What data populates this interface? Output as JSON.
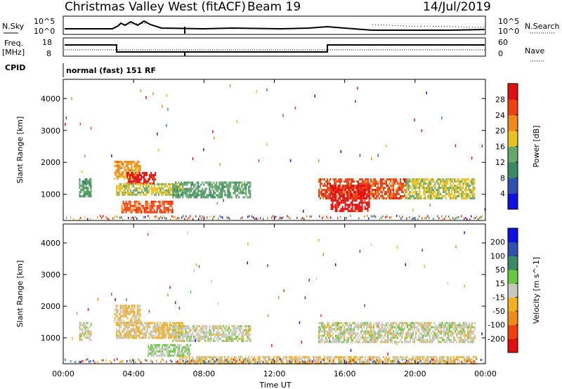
{
  "header": {
    "station": "Christmas Valley West (fitACF)",
    "beam": "Beam 19",
    "date": "14/Jul/2019"
  },
  "top_panels": {
    "nsky_label": "N.Sky",
    "nsearch_label": "N.Search",
    "left_ticks": [
      "10^5",
      "10^0"
    ],
    "right_ticks": [
      "10^5",
      "10^0"
    ],
    "freq_label": "Freq.",
    "freq_unit": "[MHz]",
    "freq_ticks": [
      "18",
      "8"
    ],
    "nave_label": "Nave",
    "nave_ticks": [
      "60",
      "0"
    ],
    "cpid_label": "CPID",
    "cpid_value": "normal (fast) 151 RF"
  },
  "chart_data": [
    {
      "type": "heatmap",
      "panel": "power",
      "xlabel": "",
      "ylabel": "Slant Range [km]",
      "x_ticks": [
        "00:00",
        "04:00",
        "08:00",
        "12:00",
        "16:00",
        "20:00",
        "00:00"
      ],
      "xlim": [
        0,
        24
      ],
      "y_ticks": [
        "1000",
        "2000",
        "3000",
        "4000"
      ],
      "ylim": [
        180,
        4600
      ],
      "colorbar": {
        "label": "Power [dB]",
        "ticks": [
          "4",
          "8",
          "12",
          "16",
          "20",
          "24",
          "28"
        ],
        "range": [
          0,
          30
        ],
        "colors": [
          "#1010e0",
          "#3050b0",
          "#3a8a68",
          "#66a86a",
          "#e8c020",
          "#f08a1a",
          "#f04010",
          "#e01010"
        ]
      },
      "regions": [
        {
          "t0": 0.9,
          "t1": 1.6,
          "r0": 950,
          "r1": 1500,
          "level": 12
        },
        {
          "t0": 2.9,
          "t1": 4.4,
          "r0": 1500,
          "r1": 2050,
          "level": 20
        },
        {
          "t0": 3.6,
          "t1": 5.2,
          "r0": 1350,
          "r1": 1700,
          "level": 28
        },
        {
          "t0": 3.0,
          "t1": 6.8,
          "r0": 1000,
          "r1": 1350,
          "level": 16
        },
        {
          "t0": 3.3,
          "t1": 6.2,
          "r0": 450,
          "r1": 800,
          "level": 24
        },
        {
          "t0": 6.2,
          "t1": 10.6,
          "r0": 900,
          "r1": 1400,
          "level": 12
        },
        {
          "t0": 14.5,
          "t1": 19.5,
          "r0": 900,
          "r1": 1500,
          "level": 24
        },
        {
          "t0": 15.2,
          "t1": 17.4,
          "r0": 500,
          "r1": 1300,
          "level": 28
        },
        {
          "t0": 19.5,
          "t1": 23.4,
          "r0": 900,
          "r1": 1500,
          "level": 16
        }
      ]
    },
    {
      "type": "heatmap",
      "panel": "velocity",
      "xlabel": "Time UT",
      "ylabel": "Slant Range [km]",
      "x_ticks": [
        "00:00",
        "04:00",
        "08:00",
        "12:00",
        "16:00",
        "20:00",
        "00:00"
      ],
      "xlim": [
        0,
        24
      ],
      "y_ticks": [
        "1000",
        "2000",
        "3000",
        "4000"
      ],
      "ylim": [
        180,
        4600
      ],
      "colorbar": {
        "label": "Velocity [m s^-1]",
        "ticks": [
          "200",
          "100",
          "50",
          "15",
          "-15",
          "-50",
          "-100",
          "-200"
        ],
        "range": [
          -250,
          250
        ],
        "colors": [
          "#e01010",
          "#f04010",
          "#f08a1a",
          "#f0b020",
          "#c8c8c0",
          "#68c840",
          "#3a8a68",
          "#3050b0",
          "#1010e0"
        ]
      },
      "regions": [
        {
          "t0": 0.9,
          "t1": 1.6,
          "r0": 950,
          "r1": 1500,
          "level": 0
        },
        {
          "t0": 2.9,
          "t1": 4.4,
          "r0": 1500,
          "r1": 2050,
          "level": -30
        },
        {
          "t0": 3.0,
          "t1": 6.8,
          "r0": 1000,
          "r1": 1500,
          "level": -30
        },
        {
          "t0": 4.8,
          "t1": 7.2,
          "r0": 450,
          "r1": 800,
          "level": 30
        },
        {
          "t0": 6.2,
          "t1": 10.6,
          "r0": 900,
          "r1": 1400,
          "level": 0
        },
        {
          "t0": 6.5,
          "t1": 23.5,
          "r0": 200,
          "r1": 420,
          "level": -30
        },
        {
          "t0": 14.5,
          "t1": 23.4,
          "r0": 900,
          "r1": 1500,
          "level": 0
        }
      ]
    }
  ]
}
